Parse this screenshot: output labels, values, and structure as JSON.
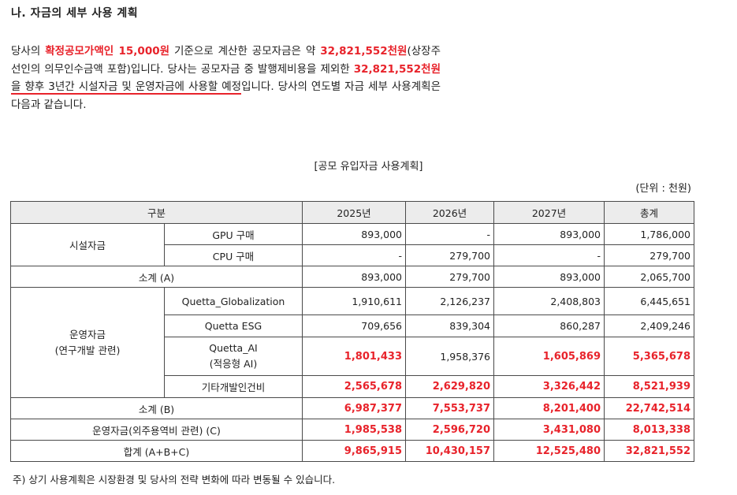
{
  "heading": "나. 자금의 세부 사용 계획",
  "paragraph": {
    "p1": "당사의 ",
    "price_label": "확정공모가액인 15,000원",
    "p2": " 기준으로 계산한 공모자금은 약 ",
    "total_raise": "32,821,552천원",
    "p3": "(상장주선인의 의무인수금액 포함)입니다. 당사는 공모자금 중 발행제비용을 제외한 ",
    "net_raise": "32,821,552천원",
    "p4": "을 ",
    "plan_phrase": "향후 3년간 시설자금 및 운영자금에 사용할 예정",
    "p5": "입니다. 당사의 연도별 자금 세부 사용계획은 다음과 같습니다."
  },
  "caption": "[공모 유입자금 사용계획]",
  "unit": "(단위 : 천원)",
  "table": {
    "headers": [
      "구분",
      "2025년",
      "2026년",
      "2027년",
      "총계"
    ],
    "facility": {
      "label": "시설자금",
      "rows": [
        {
          "item": "GPU 구매",
          "y2025": "893,000",
          "y2026": "-",
          "y2027": "893,000",
          "total": "1,786,000"
        },
        {
          "item": "CPU 구매",
          "y2025": "-",
          "y2026": "279,700",
          "y2027": "-",
          "total": "279,700"
        }
      ],
      "subtotal": {
        "label": "소계 (A)",
        "y2025": "893,000",
        "y2026": "279,700",
        "y2027": "893,000",
        "total": "2,065,700"
      }
    },
    "operating": {
      "label_line1": "운영자금",
      "label_line2": "(연구개발 관련)",
      "rows": [
        {
          "item": "Quetta_Globalization",
          "y2025": "1,910,611",
          "y2026": "2,126,237",
          "y2027": "2,408,803",
          "total": "6,445,651"
        },
        {
          "item": "Quetta ESG",
          "y2025": "709,656",
          "y2026": "839,304",
          "y2027": "860,287",
          "total": "2,409,246"
        },
        {
          "item_line1": "Quetta_AI",
          "item_line2": "(적응형 AI)",
          "y2025": "1,801,433",
          "y2026": "1,958,376",
          "y2027": "1,605,869",
          "total": "5,365,678"
        },
        {
          "item": "기타개발인건비",
          "y2025": "2,565,678",
          "y2026": "2,629,820",
          "y2027": "3,326,442",
          "total": "8,521,939"
        }
      ],
      "subtotal": {
        "label": "소계 (B)",
        "y2025": "6,987,377",
        "y2026": "7,553,737",
        "y2027": "8,201,400",
        "total": "22,742,514"
      }
    },
    "outsourcing": {
      "label": "운영자금(외주용역비 관련) (C)",
      "y2025": "1,985,538",
      "y2026": "2,596,720",
      "y2027": "3,431,080",
      "total": "8,013,338"
    },
    "grand_total": {
      "label": "합계 (A+B+C)",
      "y2025": "9,865,915",
      "y2026": "10,430,157",
      "y2027": "12,525,480",
      "total": "32,821,552"
    }
  },
  "note": "주) 상기 사용계획은 시장환경 및 당사의 전략 변화에 따라 변동될 수 있습니다.",
  "colors": {
    "highlight": "#e8232b",
    "header_bg": "#ececec"
  }
}
